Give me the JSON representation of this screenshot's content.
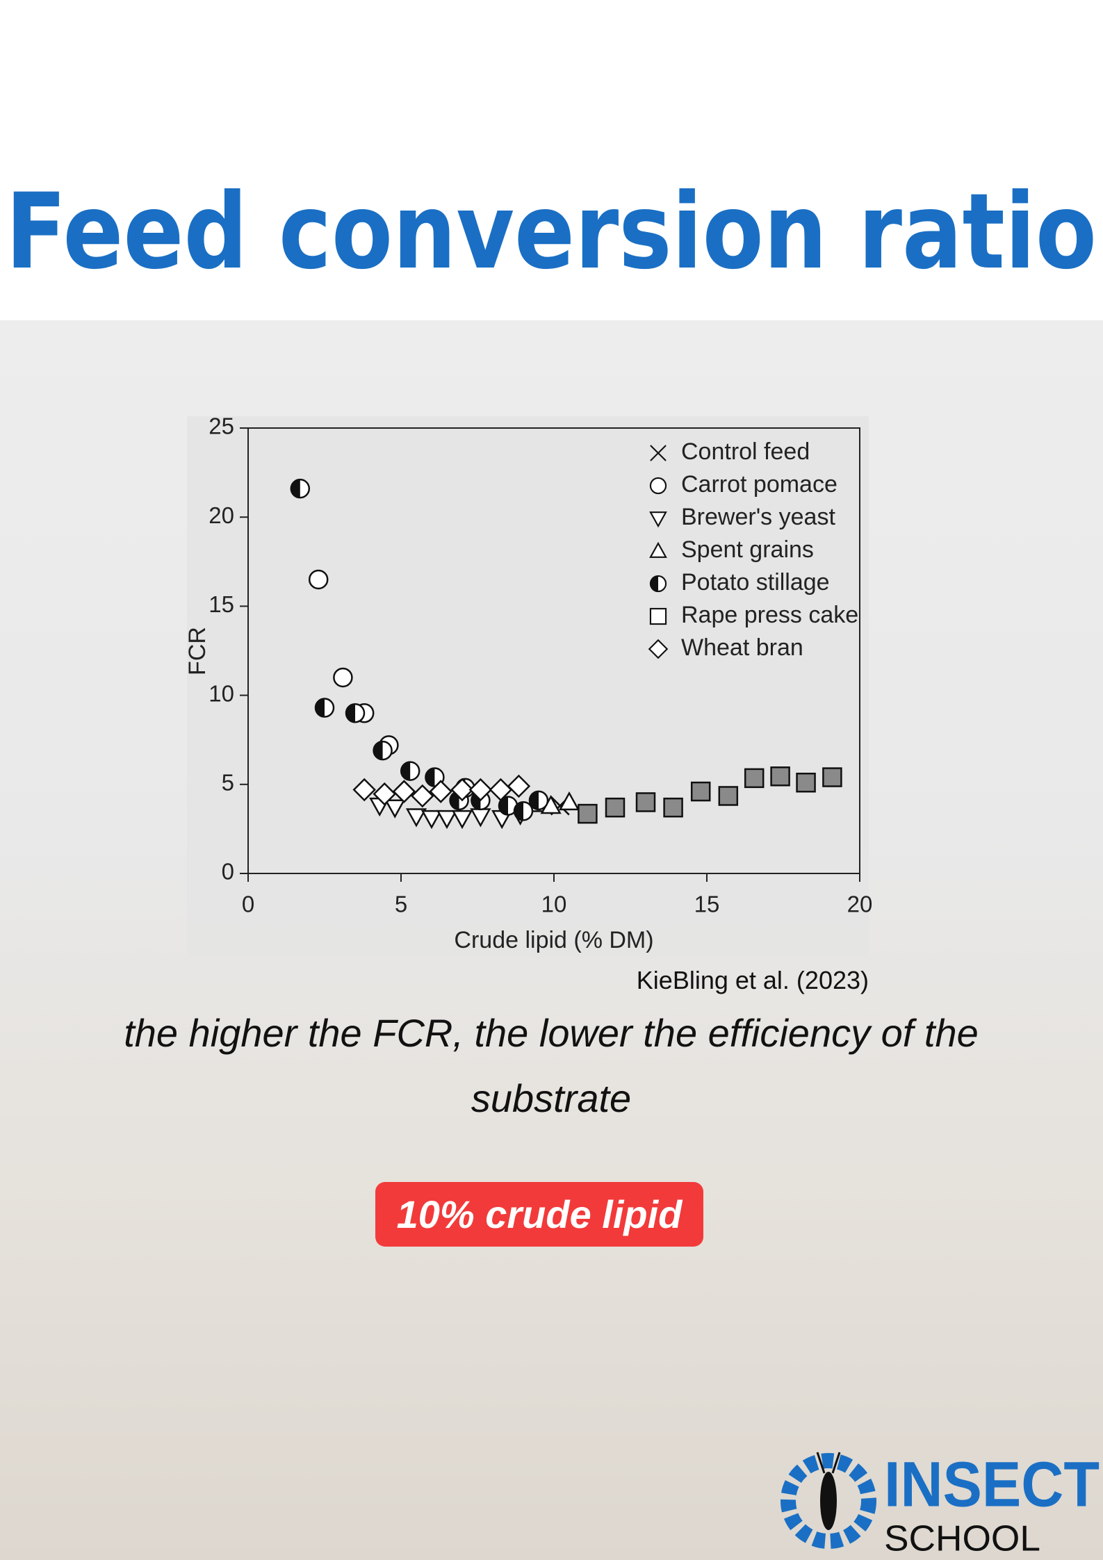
{
  "title": "Feed conversion ratio",
  "chart_data": {
    "type": "scatter",
    "xlabel": "Crude lipid (% DM)",
    "ylabel": "FCR",
    "xlim": [
      0,
      20
    ],
    "ylim": [
      0,
      25
    ],
    "xticks": [
      0,
      5,
      10,
      15,
      20
    ],
    "yticks": [
      0,
      5,
      10,
      15,
      20,
      25
    ],
    "grid": false,
    "legend": "upper right",
    "series": [
      {
        "name": "Control feed",
        "marker": "x",
        "color": "#222222",
        "x": [
          10.2
        ],
        "values": [
          3.8
        ]
      },
      {
        "name": "Carrot pomace",
        "marker": "circle",
        "color": "#ffffff",
        "x": [
          2.3,
          3.1,
          3.8,
          4.6
        ],
        "values": [
          16.5,
          11,
          9,
          7.2
        ]
      },
      {
        "name": "Brewer's yeast",
        "marker": "triangle-down",
        "color": "#ffffff",
        "x": [
          4.3,
          4.8,
          5.5,
          6,
          6.5,
          7,
          7.6,
          8.3,
          8.9
        ],
        "values": [
          3.8,
          3.7,
          3.2,
          3.1,
          3.1,
          3.1,
          3.2,
          3.1,
          3.3
        ]
      },
      {
        "name": "Spent grains",
        "marker": "triangle-up",
        "color": "#ffffff",
        "x": [
          9.5,
          9.9,
          10.5
        ],
        "values": [
          3.9,
          3.8,
          4.0
        ]
      },
      {
        "name": "Potato stillage",
        "marker": "half-circle",
        "color": "#111111",
        "x": [
          1.7,
          2.5,
          3.5,
          4.4,
          5.3,
          6.1,
          6.9,
          7.1,
          7.6,
          8.5,
          9.0,
          9.5
        ],
        "values": [
          21.6,
          9.3,
          9,
          6.9,
          5.75,
          5.4,
          4.1,
          4.8,
          4.1,
          3.8,
          3.5,
          4.1
        ]
      },
      {
        "name": "Rape press cake",
        "marker": "square",
        "color": "#8a8a8a",
        "x": [
          11.1,
          12.0,
          13.0,
          13.9,
          14.8,
          15.7,
          16.55,
          17.4,
          18.24,
          19.1
        ],
        "values": [
          3.35,
          3.7,
          4.0,
          3.7,
          4.6,
          4.35,
          5.35,
          5.45,
          5.1,
          5.4
        ]
      },
      {
        "name": "Wheat bran",
        "marker": "diamond",
        "color": "#ffffff",
        "x": [
          3.8,
          4.46,
          5.1,
          5.7,
          6.3,
          7.0,
          7.6,
          8.26,
          8.85
        ],
        "values": [
          4.7,
          4.46,
          4.6,
          4.35,
          4.6,
          4.7,
          4.7,
          4.7,
          4.9
        ]
      }
    ]
  },
  "citation": "KieBling et al. (2023)",
  "caption": "the higher the FCR, the lower the efficiency of the substrate",
  "highlight": "10% crude lipid",
  "logo": {
    "line1": "INSECT",
    "line2": "SCHOOL"
  }
}
